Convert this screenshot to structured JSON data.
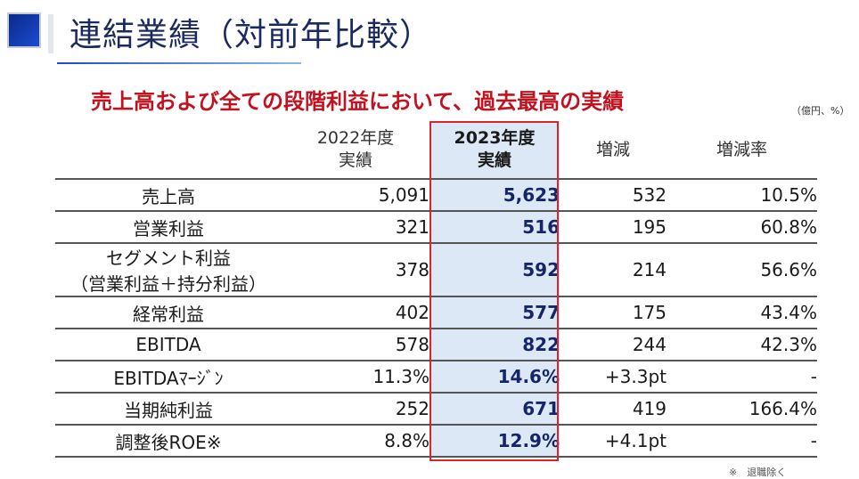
{
  "slide": {
    "title": "連結業績（対前年比較）",
    "headline": "売上高および全ての段階利益において、過去最高の実績",
    "unit": "（億円、%）",
    "footnote": "※　退職除く"
  },
  "table": {
    "headers": {
      "label": "",
      "y2022_line1": "2022年度",
      "y2022_line2": "実績",
      "y2023_line1": "2023年度",
      "y2023_line2": "実績",
      "diff": "増減",
      "rate": "増減率"
    },
    "rows": [
      {
        "label": "売上高",
        "label2": "",
        "v2022": "5,091",
        "v2023": "5,623",
        "diff": "532",
        "rate": "10.5%"
      },
      {
        "label": "営業利益",
        "label2": "",
        "v2022": "321",
        "v2023": "516",
        "diff": "195",
        "rate": "60.8%"
      },
      {
        "label": "セグメント利益",
        "label2": "（営業利益＋持分利益）",
        "v2022": "378",
        "v2023": "592",
        "diff": "214",
        "rate": "56.6%"
      },
      {
        "label": "経常利益",
        "label2": "",
        "v2022": "402",
        "v2023": "577",
        "diff": "175",
        "rate": "43.4%"
      },
      {
        "label": "EBITDA",
        "label2": "",
        "v2022": "578",
        "v2023": "822",
        "diff": "244",
        "rate": "42.3%"
      },
      {
        "label": "EBITDAﾏｰｼﾞﾝ",
        "label2": "",
        "v2022": "11.3%",
        "v2023": "14.6%",
        "diff": "+3.3pt",
        "rate": "-"
      },
      {
        "label": "当期純利益",
        "label2": "",
        "v2022": "252",
        "v2023": "671",
        "diff": "419",
        "rate": "166.4%"
      },
      {
        "label": "調整後ROE※",
        "label2": "",
        "v2022": "8.8%",
        "v2023": "12.9%",
        "diff": "+4.1pt",
        "rate": "-"
      }
    ]
  },
  "colors": {
    "title_blue": "#1b2a5e",
    "headline_red": "#c1121f",
    "highlight_column": "#dce8f5",
    "highlight_border": "#d9262e"
  }
}
